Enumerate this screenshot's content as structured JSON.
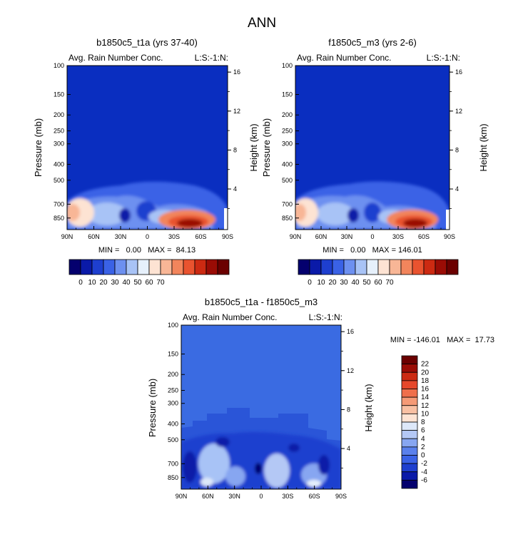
{
  "main_title": "ANN",
  "chart_data": [
    {
      "type": "heatmap",
      "title": "b1850c5_t1a (yrs 37-40)",
      "left_label": "Avg. Rain Number Conc.",
      "right_label": "L:S:-1:N:",
      "ylabel": "Pressure (mb)",
      "ylabel_right": "Height (km)",
      "x_ticks": [
        "90N",
        "60N",
        "30N",
        "0",
        "30S",
        "60S",
        "90S"
      ],
      "y_ticks": [
        "100",
        "150",
        "200",
        "250",
        "300",
        "400",
        "500",
        "700",
        "850"
      ],
      "y_ticks_right": [
        "16",
        "12",
        "8",
        "4"
      ],
      "stats": "MIN =   0.00   MAX =  84.13",
      "colorbar_labels": [
        "0",
        "10",
        "20",
        "30",
        "40",
        "50",
        "60",
        "70"
      ]
    },
    {
      "type": "heatmap",
      "title": "f1850c5_m3 (yrs 2-6)",
      "left_label": "Avg. Rain Number Conc.",
      "right_label": "L:S:-1:N:",
      "ylabel": "Pressure (mb)",
      "ylabel_right": "Height (km)",
      "x_ticks": [
        "90N",
        "60N",
        "30N",
        "0",
        "30S",
        "60S",
        "90S"
      ],
      "y_ticks": [
        "100",
        "150",
        "200",
        "250",
        "300",
        "400",
        "500",
        "700",
        "850"
      ],
      "y_ticks_right": [
        "16",
        "12",
        "8",
        "4"
      ],
      "stats": "MIN =   0.00   MAX = 146.01",
      "colorbar_labels": [
        "0",
        "10",
        "20",
        "30",
        "40",
        "50",
        "60",
        "70"
      ]
    },
    {
      "type": "heatmap",
      "title": "b1850c5_t1a - f1850c5_m3",
      "left_label": "Avg. Rain Number Conc.",
      "right_label": "L:S:-1:N:",
      "ylabel": "Pressure (mb)",
      "ylabel_right": "Height (km)",
      "x_ticks": [
        "90N",
        "60N",
        "30N",
        "0",
        "30S",
        "60S",
        "90S"
      ],
      "y_ticks": [
        "100",
        "150",
        "200",
        "250",
        "300",
        "400",
        "500",
        "700",
        "850"
      ],
      "y_ticks_right": [
        "16",
        "12",
        "8",
        "4"
      ],
      "stats": "MIN = -146.01   MAX =  17.73",
      "colorbar_labels": [
        "22",
        "20",
        "18",
        "16",
        "14",
        "12",
        "10",
        "8",
        "6",
        "4",
        "2",
        "0",
        "-2",
        "-4",
        "-6"
      ]
    }
  ],
  "palette_abs": [
    "#04006e",
    "#0a1aa8",
    "#1e3fcf",
    "#3a62e6",
    "#6d90f0",
    "#a8c3f6",
    "#e6f0fb",
    "#fde3d3",
    "#f8b696",
    "#f2855c",
    "#e9532f",
    "#cc2a12",
    "#9a0c05",
    "#6b0000"
  ],
  "palette_diff": [
    "#04006e",
    "#0a1aa8",
    "#1e3fcf",
    "#3a62e6",
    "#5a80ec",
    "#87a6f1",
    "#b4c8f5",
    "#dde8f9",
    "#fde3d3",
    "#f8c0a3",
    "#f59a76",
    "#ef6f4b",
    "#e6472a",
    "#cc2a12",
    "#9a0c05",
    "#6b0000"
  ],
  "bg_colors": {
    "abs": "#0a2ec0",
    "diff": "#3a6be2"
  }
}
